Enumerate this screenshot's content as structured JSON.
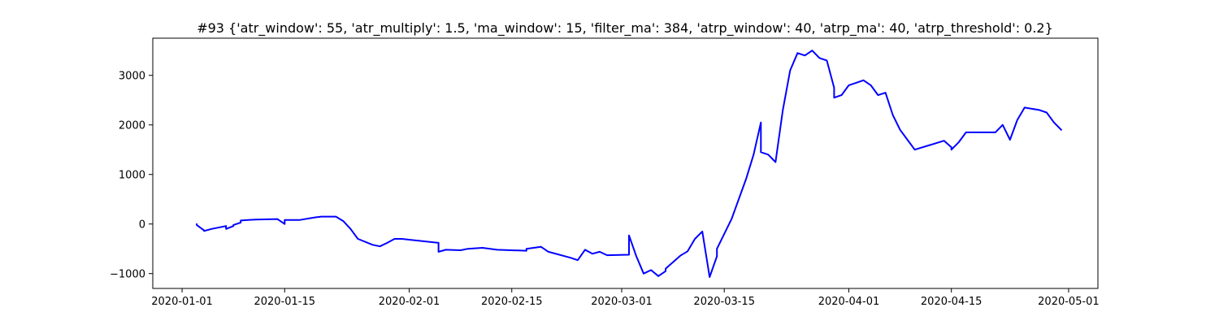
{
  "chart_data": {
    "type": "line",
    "title": "#93 {'atr_window': 55, 'atr_multiply': 1.5, 'ma_window': 15, 'filter_ma': 384, 'atrp_window': 40, 'atrp_ma': 40, 'atrp_threshold': 0.2}",
    "xlabel": "",
    "ylabel": "",
    "x_tick_labels": [
      "2020-01-01",
      "2020-01-15",
      "2020-02-01",
      "2020-02-15",
      "2020-03-01",
      "2020-03-15",
      "2020-04-01",
      "2020-04-15",
      "2020-05-01"
    ],
    "y_tick_values": [
      -1000,
      0,
      1000,
      2000,
      3000
    ],
    "xlim": [
      "2019-12-28",
      "2020-05-05"
    ],
    "ylim": [
      -1300,
      3750
    ],
    "grid": false,
    "series": [
      {
        "color": "#0000ff",
        "x": [
          "2020-01-03",
          "2020-01-03",
          "2020-01-04",
          "2020-01-04",
          "2020-01-05",
          "2020-01-07",
          "2020-01-07",
          "2020-01-08",
          "2020-01-08",
          "2020-01-09",
          "2020-01-09",
          "2020-01-10",
          "2020-01-11",
          "2020-01-14",
          "2020-01-15",
          "2020-01-15",
          "2020-01-17",
          "2020-01-19",
          "2020-01-20",
          "2020-01-22",
          "2020-01-23",
          "2020-01-24",
          "2020-01-25",
          "2020-01-27",
          "2020-01-28",
          "2020-01-29",
          "2020-01-30",
          "2020-01-31",
          "2020-02-05",
          "2020-02-05",
          "2020-02-06",
          "2020-02-08",
          "2020-02-09",
          "2020-02-11",
          "2020-02-13",
          "2020-02-17",
          "2020-02-17",
          "2020-02-19",
          "2020-02-20",
          "2020-02-23",
          "2020-02-24",
          "2020-02-25",
          "2020-02-26",
          "2020-02-27",
          "2020-02-28",
          "2020-03-02",
          "2020-03-02",
          "2020-03-03",
          "2020-03-04",
          "2020-03-05",
          "2020-03-06",
          "2020-03-07",
          "2020-03-07",
          "2020-03-09",
          "2020-03-10",
          "2020-03-11",
          "2020-03-12",
          "2020-03-13",
          "2020-03-14",
          "2020-03-14",
          "2020-03-16",
          "2020-03-18",
          "2020-03-19",
          "2020-03-20",
          "2020-03-20",
          "2020-03-21",
          "2020-03-22",
          "2020-03-23",
          "2020-03-24",
          "2020-03-25",
          "2020-03-26",
          "2020-03-27",
          "2020-03-28",
          "2020-03-29",
          "2020-03-30",
          "2020-03-30",
          "2020-03-31",
          "2020-04-01",
          "2020-04-02",
          "2020-04-03",
          "2020-04-04",
          "2020-04-05",
          "2020-04-06",
          "2020-04-07",
          "2020-04-08",
          "2020-04-09",
          "2020-04-10",
          "2020-04-14",
          "2020-04-15",
          "2020-04-15",
          "2020-04-16",
          "2020-04-17",
          "2020-04-18",
          "2020-04-21",
          "2020-04-22",
          "2020-04-23",
          "2020-04-24",
          "2020-04-25",
          "2020-04-27",
          "2020-04-28",
          "2020-04-29",
          "2020-04-30"
        ],
        "y": [
          0,
          -20,
          -130,
          -140,
          -100,
          -40,
          -100,
          -40,
          -20,
          30,
          70,
          80,
          90,
          100,
          0,
          80,
          80,
          130,
          150,
          150,
          60,
          -100,
          -300,
          -420,
          -450,
          -380,
          -300,
          -300,
          -380,
          -560,
          -520,
          -530,
          -500,
          -480,
          -520,
          -540,
          -500,
          -460,
          -560,
          -680,
          -730,
          -520,
          -600,
          -560,
          -630,
          -620,
          -230,
          -650,
          -1000,
          -930,
          -1050,
          -950,
          -900,
          -640,
          -550,
          -300,
          -150,
          -1070,
          -650,
          -500,
          100,
          920,
          1400,
          2050,
          1450,
          1400,
          1250,
          2300,
          3100,
          3450,
          3400,
          3500,
          3350,
          3300,
          2750,
          2550,
          2600,
          2800,
          2850,
          2900,
          2800,
          2600,
          2650,
          2200,
          1900,
          1700,
          1500,
          1680,
          1550,
          1500,
          1650,
          1850,
          1850,
          1850,
          2000,
          1700,
          2100,
          2350,
          2300,
          2250,
          2050,
          1900
        ]
      }
    ]
  }
}
